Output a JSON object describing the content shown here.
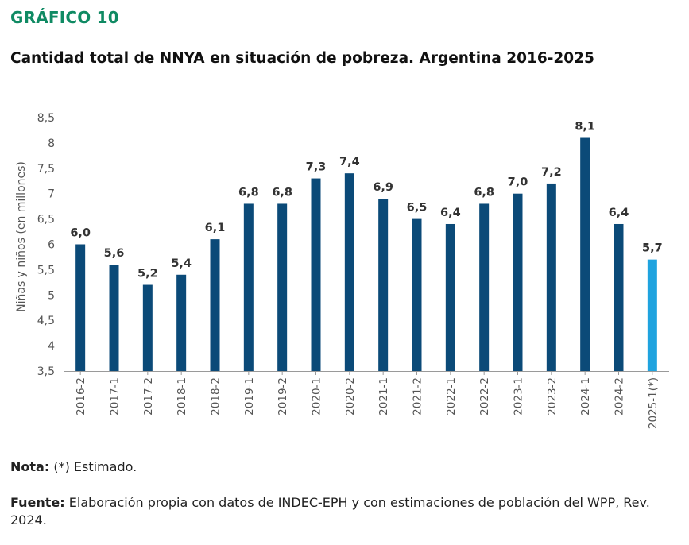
{
  "figure_label": "GRÁFICO 10",
  "title": "Cantidad total de NNYA en situación de pobreza. Argentina 2016-2025",
  "note": {
    "label": "Nota:",
    "text": " (*) Estimado."
  },
  "source": {
    "label": "Fuente:",
    "text": " Elaboración propia con datos de INDEC-EPH y con estimaciones de población del WPP, Rev. 2024."
  },
  "colors": {
    "bar": "#0b4a78",
    "estimated_bar": "#1fa3df",
    "title": "#0f8a63",
    "axis": "#555555"
  },
  "chart_data": {
    "type": "bar",
    "title": "Cantidad total de NNYA en situación de pobreza. Argentina 2016-2025",
    "xlabel": "",
    "ylabel": "Niñas y niños (en millones)",
    "ylim": [
      3.5,
      8.5
    ],
    "yticks": [
      3.5,
      4,
      4.5,
      5,
      5.5,
      6,
      6.5,
      7,
      7.5,
      8,
      8.5
    ],
    "ytick_labels": [
      "3,5",
      "4",
      "4,5",
      "5",
      "5,5",
      "6",
      "6,5",
      "7",
      "7,5",
      "8",
      "8,5"
    ],
    "categories": [
      "2016-2",
      "2017-1",
      "2017-2",
      "2018-1",
      "2018-2",
      "2019-1",
      "2019-2",
      "2020-1",
      "2020-2",
      "2021-1",
      "2021-2",
      "2022-1",
      "2022-2",
      "2023-1",
      "2023-2",
      "2024-1",
      "2024-2",
      "2025-1(*)"
    ],
    "values": [
      6.0,
      5.6,
      5.2,
      5.4,
      6.1,
      6.8,
      6.8,
      7.3,
      7.4,
      6.9,
      6.5,
      6.4,
      6.8,
      7.0,
      7.2,
      8.1,
      6.4,
      5.7
    ],
    "value_labels": [
      "6,0",
      "5,6",
      "5,2",
      "5,4",
      "6,1",
      "6,8",
      "6,8",
      "7,3",
      "7,4",
      "6,9",
      "6,5",
      "6,4",
      "6,8",
      "7,0",
      "7,2",
      "8,1",
      "6,4",
      "5,7"
    ],
    "estimated": [
      false,
      false,
      false,
      false,
      false,
      false,
      false,
      false,
      false,
      false,
      false,
      false,
      false,
      false,
      false,
      false,
      false,
      true
    ],
    "grid": false,
    "legend": "none"
  }
}
